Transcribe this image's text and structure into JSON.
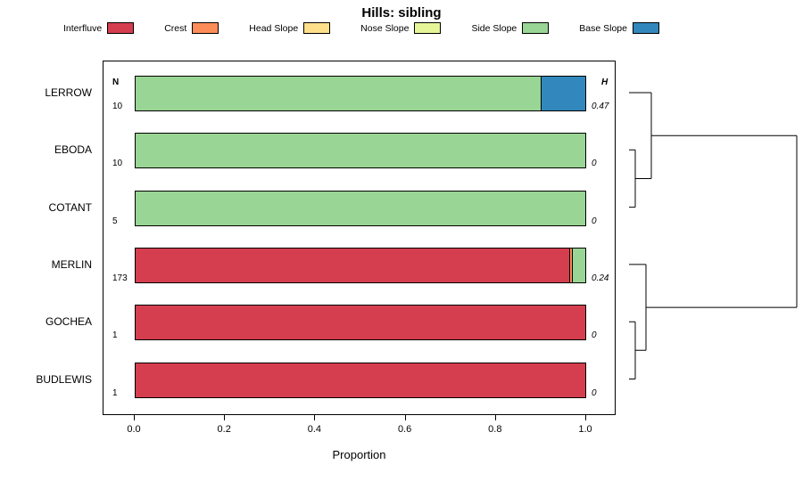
{
  "title": "Hills: sibling",
  "legend": [
    {
      "label": "Interfluve",
      "color": "#D53E4F"
    },
    {
      "label": "Crest",
      "color": "#FC8D59"
    },
    {
      "label": "Head Slope",
      "color": "#FEE08B"
    },
    {
      "label": "Nose Slope",
      "color": "#E6F598"
    },
    {
      "label": "Side Slope",
      "color": "#99D594"
    },
    {
      "label": "Base Slope",
      "color": "#3288BD"
    }
  ],
  "axis": {
    "xlabel": "Proportion",
    "ticks": [
      "0.0",
      "0.2",
      "0.4",
      "0.6",
      "0.8",
      "1.0"
    ],
    "xlim": [
      0,
      1
    ],
    "n_header": "N",
    "h_header": "H"
  },
  "chart_data": {
    "type": "bar",
    "orientation": "horizontal-stacked",
    "title": "Hills: sibling",
    "xlabel": "Proportion",
    "xlim": [
      0,
      1
    ],
    "categories": [
      "Interfluve",
      "Crest",
      "Head Slope",
      "Nose Slope",
      "Side Slope",
      "Base Slope"
    ],
    "rows": [
      {
        "name": "LERROW",
        "n": "10",
        "h": "0.47",
        "segments": [
          {
            "category": "Side Slope",
            "value": 0.9
          },
          {
            "category": "Base Slope",
            "value": 0.1
          }
        ]
      },
      {
        "name": "EBODA",
        "n": "10",
        "h": "0",
        "segments": [
          {
            "category": "Side Slope",
            "value": 1.0
          }
        ]
      },
      {
        "name": "COTANT",
        "n": "5",
        "h": "0",
        "segments": [
          {
            "category": "Side Slope",
            "value": 1.0
          }
        ]
      },
      {
        "name": "MERLIN",
        "n": "173",
        "h": "0.24",
        "segments": [
          {
            "category": "Interfluve",
            "value": 0.965
          },
          {
            "category": "Crest",
            "value": 0.006
          },
          {
            "category": "Side Slope",
            "value": 0.029
          }
        ]
      },
      {
        "name": "GOCHEA",
        "n": "1",
        "h": "0",
        "segments": [
          {
            "category": "Interfluve",
            "value": 1.0
          }
        ]
      },
      {
        "name": "BUDLEWIS",
        "n": "1",
        "h": "0",
        "segments": [
          {
            "category": "Interfluve",
            "value": 1.0
          }
        ]
      }
    ],
    "dendrogram_topology": "((LERROW,(EBODA,COTANT)),(MERLIN,(GOCHEA,BUDLEWIS)))",
    "legend_position": "top",
    "grid": false
  }
}
